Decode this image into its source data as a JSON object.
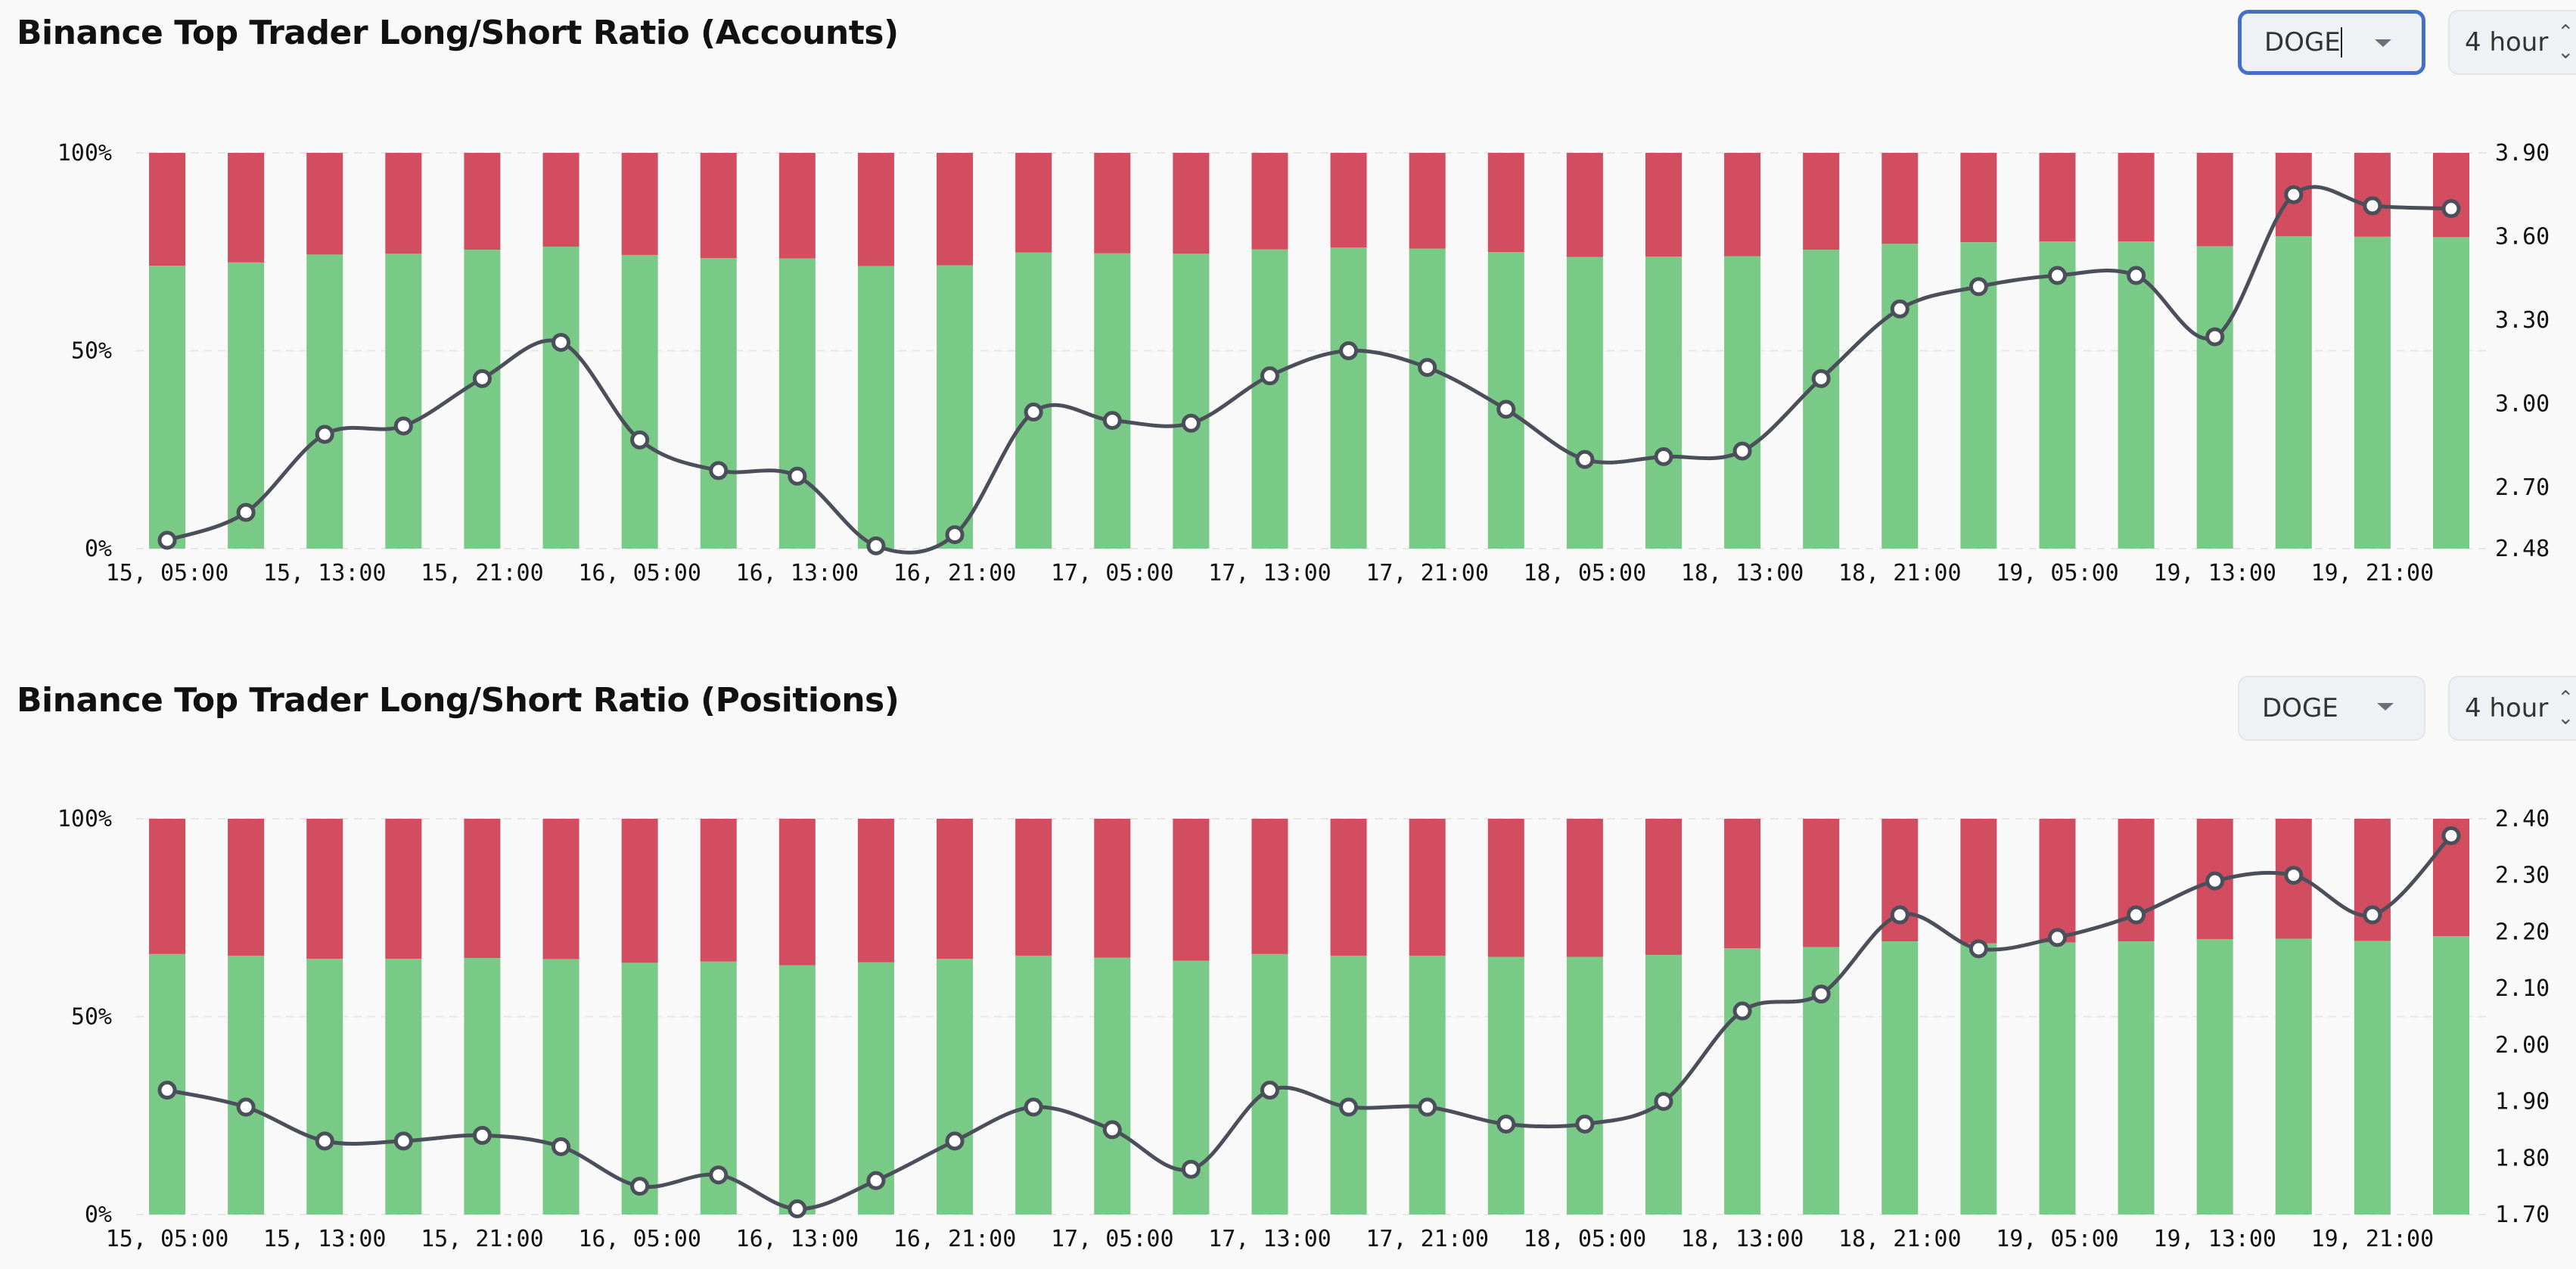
{
  "panels": [
    {
      "title": "Binance Top Trader Long/Short Ratio (Accounts)",
      "symbol_select": {
        "value": "DOGE",
        "focused": true,
        "icon": "caret-down-icon"
      },
      "interval_select": {
        "value": "4 hour",
        "icon": "up-down-chevron-icon"
      }
    },
    {
      "title": "Binance Top Trader Long/Short Ratio (Positions)",
      "symbol_select": {
        "value": "DOGE",
        "focused": false,
        "icon": "caret-down-icon"
      },
      "interval_select": {
        "value": "4 hour",
        "icon": "up-down-chevron-icon"
      }
    }
  ],
  "colors": {
    "long": "#79c987",
    "short": "#d24d60",
    "ratio_line": "#4a4f5a",
    "focus": "#4470c8"
  },
  "chart_data": [
    {
      "type": "bar+line",
      "stacked": true,
      "x": [
        "15, 05:00",
        "15, 09:00",
        "15, 13:00",
        "15, 17:00",
        "15, 21:00",
        "16, 01:00",
        "16, 05:00",
        "16, 09:00",
        "16, 13:00",
        "16, 17:00",
        "16, 21:00",
        "17, 01:00",
        "17, 05:00",
        "17, 09:00",
        "17, 13:00",
        "17, 17:00",
        "17, 21:00",
        "18, 01:00",
        "18, 05:00",
        "18, 09:00",
        "18, 13:00",
        "18, 17:00",
        "18, 21:00",
        "19, 01:00",
        "19, 05:00",
        "19, 09:00",
        "19, 13:00",
        "19, 17:00",
        "19, 21:00",
        "20, 01:00"
      ],
      "x_tick_labels": [
        "15, 05:00",
        "15, 13:00",
        "15, 21:00",
        "16, 05:00",
        "16, 13:00",
        "16, 21:00",
        "17, 05:00",
        "17, 13:00",
        "17, 21:00",
        "18, 05:00",
        "18, 13:00",
        "18, 21:00",
        "19, 05:00",
        "19, 13:00",
        "19, 21:00"
      ],
      "long_pct": [
        71.5,
        72.3,
        74.3,
        74.5,
        75.5,
        76.3,
        74.2,
        73.4,
        73.3,
        71.4,
        71.6,
        74.8,
        74.6,
        74.5,
        75.6,
        76.1,
        75.8,
        74.9,
        73.7,
        73.8,
        73.9,
        75.5,
        77.0,
        77.4,
        77.6,
        77.6,
        76.4,
        78.9,
        78.8,
        78.7
      ],
      "ratio": [
        2.51,
        2.61,
        2.89,
        2.92,
        3.09,
        3.22,
        2.87,
        2.76,
        2.74,
        2.49,
        2.53,
        2.97,
        2.94,
        2.93,
        3.1,
        3.19,
        3.13,
        2.98,
        2.8,
        2.81,
        2.83,
        3.09,
        3.34,
        3.42,
        3.46,
        3.46,
        3.24,
        3.75,
        3.71,
        3.7
      ],
      "left_axis": {
        "ylim": [
          0,
          100
        ],
        "ticks": [
          "100%",
          "50%",
          "0%"
        ],
        "tick_values": [
          100,
          50,
          0
        ]
      },
      "right_axis": {
        "ylim": [
          2.48,
          3.9
        ],
        "ticks": [
          "3.90",
          "3.60",
          "3.30",
          "3.00",
          "2.70",
          "2.48"
        ],
        "tick_values": [
          3.9,
          3.6,
          3.3,
          3.0,
          2.7,
          2.48
        ]
      },
      "grid": true
    },
    {
      "type": "bar+line",
      "stacked": true,
      "x": [
        "15, 05:00",
        "15, 09:00",
        "15, 13:00",
        "15, 17:00",
        "15, 21:00",
        "16, 01:00",
        "16, 05:00",
        "16, 09:00",
        "16, 13:00",
        "16, 17:00",
        "16, 21:00",
        "17, 01:00",
        "17, 05:00",
        "17, 09:00",
        "17, 13:00",
        "17, 17:00",
        "17, 21:00",
        "18, 01:00",
        "18, 05:00",
        "18, 09:00",
        "18, 13:00",
        "18, 17:00",
        "18, 21:00",
        "19, 01:00",
        "19, 05:00",
        "19, 09:00",
        "19, 13:00",
        "19, 17:00",
        "19, 21:00",
        "20, 01:00"
      ],
      "x_tick_labels": [
        "15, 05:00",
        "15, 13:00",
        "15, 21:00",
        "16, 05:00",
        "16, 13:00",
        "16, 21:00",
        "17, 05:00",
        "17, 13:00",
        "17, 21:00",
        "18, 05:00",
        "18, 13:00",
        "18, 21:00",
        "19, 05:00",
        "19, 13:00",
        "19, 21:00"
      ],
      "long_pct": [
        65.8,
        65.4,
        64.6,
        64.6,
        64.8,
        64.5,
        63.6,
        63.9,
        63.0,
        63.7,
        64.6,
        65.4,
        64.9,
        64.1,
        65.8,
        65.4,
        65.4,
        65.1,
        65.1,
        65.6,
        67.3,
        67.6,
        69.0,
        68.5,
        68.7,
        69.0,
        69.6,
        69.7,
        69.1,
        70.3
      ],
      "ratio": [
        1.92,
        1.89,
        1.83,
        1.83,
        1.84,
        1.82,
        1.75,
        1.77,
        1.71,
        1.76,
        1.83,
        1.89,
        1.85,
        1.78,
        1.92,
        1.89,
        1.89,
        1.86,
        1.86,
        1.9,
        2.06,
        2.09,
        2.23,
        2.17,
        2.19,
        2.23,
        2.29,
        2.3,
        2.23,
        2.37
      ],
      "left_axis": {
        "ylim": [
          0,
          100
        ],
        "ticks": [
          "100%",
          "50%",
          "0%"
        ],
        "tick_values": [
          100,
          50,
          0
        ]
      },
      "right_axis": {
        "ylim": [
          1.7,
          2.4
        ],
        "ticks": [
          "2.40",
          "2.30",
          "2.20",
          "2.10",
          "2.00",
          "1.90",
          "1.80",
          "1.70"
        ],
        "tick_values": [
          2.4,
          2.3,
          2.2,
          2.1,
          2.0,
          1.9,
          1.8,
          1.7
        ]
      },
      "grid": true
    }
  ]
}
